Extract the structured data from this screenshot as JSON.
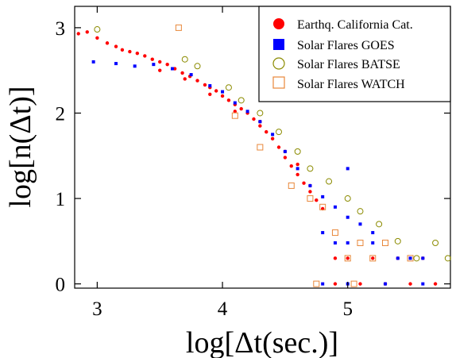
{
  "chart_data": {
    "type": "scatter",
    "xlabel": "log[Δt(sec.)]",
    "ylabel": "log[n(Δt)]",
    "xlim": [
      2.82,
      5.82
    ],
    "ylim": [
      -0.05,
      3.25
    ],
    "xticks": [
      3,
      4,
      5
    ],
    "yticks": [
      0,
      1,
      2,
      3
    ],
    "grid": false,
    "legend_position": "top-right",
    "series": [
      {
        "name": "Earthq. California Cat.",
        "marker": "filled-circle",
        "color": "#ff0000",
        "points": [
          [
            2.85,
            2.93
          ],
          [
            2.92,
            2.95
          ],
          [
            3.0,
            2.88
          ],
          [
            3.08,
            2.82
          ],
          [
            3.15,
            2.78
          ],
          [
            3.2,
            2.74
          ],
          [
            3.26,
            2.72
          ],
          [
            3.32,
            2.7
          ],
          [
            3.38,
            2.67
          ],
          [
            3.44,
            2.63
          ],
          [
            3.5,
            2.6
          ],
          [
            3.56,
            2.57
          ],
          [
            3.62,
            2.52
          ],
          [
            3.68,
            2.47
          ],
          [
            3.74,
            2.43
          ],
          [
            3.8,
            2.38
          ],
          [
            3.86,
            2.33
          ],
          [
            3.9,
            2.3
          ],
          [
            3.95,
            2.26
          ],
          [
            4.0,
            2.2
          ],
          [
            4.05,
            2.15
          ],
          [
            4.1,
            2.1
          ],
          [
            4.15,
            2.05
          ],
          [
            4.2,
            2.0
          ],
          [
            4.25,
            1.93
          ],
          [
            4.3,
            1.85
          ],
          [
            4.35,
            1.78
          ],
          [
            4.4,
            1.7
          ],
          [
            4.45,
            1.6
          ],
          [
            4.5,
            1.48
          ],
          [
            4.55,
            1.38
          ],
          [
            4.6,
            1.28
          ],
          [
            4.65,
            1.18
          ],
          [
            4.7,
            1.08
          ],
          [
            4.75,
            0.98
          ],
          [
            4.8,
            0.88
          ],
          [
            3.5,
            2.5
          ],
          [
            3.7,
            2.4
          ],
          [
            3.9,
            2.22
          ],
          [
            4.1,
            2.02
          ],
          [
            4.3,
            1.9
          ],
          [
            4.5,
            1.55
          ],
          [
            4.6,
            1.4
          ],
          [
            4.7,
            1.15
          ],
          [
            4.9,
            0.3
          ],
          [
            5.0,
            0.3
          ],
          [
            5.2,
            0.3
          ],
          [
            5.4,
            0.3
          ],
          [
            5.6,
            0.3
          ],
          [
            4.9,
            0.0
          ],
          [
            5.1,
            0.0
          ],
          [
            5.3,
            0.0
          ],
          [
            5.5,
            0.0
          ],
          [
            5.7,
            0.0
          ]
        ]
      },
      {
        "name": "Solar Flares GOES",
        "marker": "filled-square",
        "color": "#0000ff",
        "points": [
          [
            2.97,
            2.6
          ],
          [
            3.15,
            2.58
          ],
          [
            3.3,
            2.55
          ],
          [
            3.45,
            2.57
          ],
          [
            3.6,
            2.52
          ],
          [
            3.75,
            2.45
          ],
          [
            3.9,
            2.32
          ],
          [
            4.0,
            2.25
          ],
          [
            4.1,
            2.12
          ],
          [
            4.2,
            2.02
          ],
          [
            4.3,
            1.9
          ],
          [
            4.4,
            1.75
          ],
          [
            4.5,
            1.55
          ],
          [
            4.6,
            1.35
          ],
          [
            4.7,
            1.15
          ],
          [
            4.8,
            1.02
          ],
          [
            4.9,
            0.9
          ],
          [
            5.0,
            0.78
          ],
          [
            5.1,
            0.7
          ],
          [
            5.2,
            0.6
          ],
          [
            4.8,
            0.6
          ],
          [
            4.9,
            0.48
          ],
          [
            5.0,
            0.48
          ],
          [
            5.2,
            0.48
          ],
          [
            5.4,
            0.3
          ],
          [
            5.5,
            0.3
          ],
          [
            5.6,
            0.3
          ],
          [
            4.8,
            0.0
          ],
          [
            5.0,
            0.0
          ],
          [
            5.3,
            0.0
          ],
          [
            5.6,
            0.0
          ],
          [
            5.0,
            1.35
          ]
        ]
      },
      {
        "name": "Solar Flares BATSE",
        "marker": "open-circle",
        "color": "#8b8b00",
        "points": [
          [
            3.0,
            2.98
          ],
          [
            3.7,
            2.63
          ],
          [
            3.8,
            2.55
          ],
          [
            4.05,
            2.3
          ],
          [
            4.15,
            2.15
          ],
          [
            4.3,
            2.0
          ],
          [
            4.45,
            1.78
          ],
          [
            4.6,
            1.55
          ],
          [
            4.7,
            1.35
          ],
          [
            4.85,
            1.2
          ],
          [
            5.0,
            1.0
          ],
          [
            5.1,
            0.85
          ],
          [
            5.25,
            0.7
          ],
          [
            5.4,
            0.5
          ],
          [
            5.55,
            0.3
          ],
          [
            5.7,
            0.48
          ],
          [
            5.8,
            0.3
          ]
        ]
      },
      {
        "name": "Solar Flares WATCH",
        "marker": "open-square",
        "color": "#e8873a",
        "points": [
          [
            3.65,
            3.0
          ],
          [
            4.1,
            1.97
          ],
          [
            4.3,
            1.6
          ],
          [
            4.55,
            1.15
          ],
          [
            4.7,
            1.0
          ],
          [
            4.8,
            0.9
          ],
          [
            4.9,
            0.6
          ],
          [
            5.1,
            0.48
          ],
          [
            5.3,
            0.48
          ],
          [
            5.0,
            0.3
          ],
          [
            5.2,
            0.3
          ],
          [
            5.5,
            0.3
          ],
          [
            4.75,
            0.0
          ],
          [
            5.05,
            0.0
          ]
        ]
      }
    ]
  }
}
